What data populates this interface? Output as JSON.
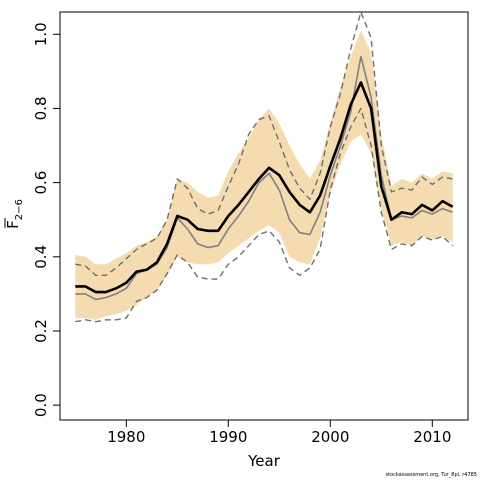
{
  "chart_data": {
    "type": "line",
    "xlabel": "Year",
    "ylabel_main": "F",
    "ylabel_sub": "2−6",
    "xlim": [
      1973.5,
      2013.5
    ],
    "ylim": [
      -0.04,
      1.06
    ],
    "x_ticks": [
      1980,
      1990,
      2000,
      2010
    ],
    "x_tick_labels": [
      "1980",
      "1990",
      "2000",
      "2010"
    ],
    "y_ticks": [
      0.0,
      0.2,
      0.4,
      0.6,
      0.8,
      1.0
    ],
    "y_tick_labels": [
      "0.0",
      "0.2",
      "0.4",
      "0.6",
      "0.8",
      "1.0"
    ],
    "grid": false,
    "colors": {
      "band": "#f5dbb0",
      "main_line": "#000000",
      "secondary_line": "#808080",
      "bounds": "#6e6e6e"
    },
    "x": [
      1975,
      1976,
      1977,
      1978,
      1979,
      1980,
      1981,
      1982,
      1983,
      1984,
      1985,
      1986,
      1987,
      1988,
      1989,
      1990,
      1991,
      1992,
      1993,
      1994,
      1995,
      1996,
      1997,
      1998,
      1999,
      2000,
      2001,
      2002,
      2003,
      2004,
      2005,
      2006,
      2007,
      2008,
      2009,
      2010,
      2011,
      2012
    ],
    "band_upper": [
      0.405,
      0.4,
      0.38,
      0.38,
      0.395,
      0.41,
      0.43,
      0.44,
      0.455,
      0.5,
      0.61,
      0.6,
      0.575,
      0.56,
      0.565,
      0.63,
      0.68,
      0.72,
      0.77,
      0.8,
      0.76,
      0.7,
      0.65,
      0.61,
      0.66,
      0.76,
      0.86,
      0.94,
      1.01,
      0.95,
      0.73,
      0.59,
      0.61,
      0.6,
      0.625,
      0.61,
      0.63,
      0.625
    ],
    "band_lower": [
      0.235,
      0.235,
      0.23,
      0.24,
      0.245,
      0.255,
      0.27,
      0.29,
      0.31,
      0.35,
      0.4,
      0.385,
      0.38,
      0.38,
      0.385,
      0.41,
      0.43,
      0.45,
      0.47,
      0.485,
      0.465,
      0.4,
      0.385,
      0.38,
      0.45,
      0.57,
      0.65,
      0.71,
      0.73,
      0.68,
      0.53,
      0.43,
      0.44,
      0.43,
      0.455,
      0.445,
      0.455,
      0.44
    ],
    "series": [
      {
        "role": "estimate",
        "values": [
          0.32,
          0.32,
          0.305,
          0.305,
          0.315,
          0.33,
          0.36,
          0.365,
          0.385,
          0.435,
          0.51,
          0.5,
          0.475,
          0.47,
          0.47,
          0.51,
          0.54,
          0.575,
          0.61,
          0.64,
          0.62,
          0.575,
          0.54,
          0.52,
          0.565,
          0.645,
          0.72,
          0.81,
          0.87,
          0.8,
          0.59,
          0.5,
          0.52,
          0.515,
          0.54,
          0.525,
          0.55,
          0.535
        ]
      },
      {
        "role": "secondary",
        "values": [
          0.3,
          0.3,
          0.285,
          0.29,
          0.3,
          0.315,
          0.355,
          0.365,
          0.38,
          0.425,
          0.505,
          0.475,
          0.435,
          0.425,
          0.43,
          0.475,
          0.51,
          0.55,
          0.6,
          0.625,
          0.58,
          0.5,
          0.465,
          0.46,
          0.52,
          0.62,
          0.7,
          0.79,
          0.94,
          0.83,
          0.62,
          0.5,
          0.51,
          0.505,
          0.525,
          0.515,
          0.53,
          0.52
        ]
      },
      {
        "role": "upper_bound",
        "values": [
          0.38,
          0.375,
          0.35,
          0.35,
          0.37,
          0.395,
          0.42,
          0.435,
          0.45,
          0.5,
          0.61,
          0.585,
          0.53,
          0.515,
          0.525,
          0.59,
          0.65,
          0.73,
          0.77,
          0.78,
          0.71,
          0.635,
          0.585,
          0.555,
          0.625,
          0.75,
          0.84,
          0.96,
          1.06,
          0.99,
          0.7,
          0.575,
          0.585,
          0.58,
          0.615,
          0.595,
          0.615,
          0.61
        ]
      },
      {
        "role": "lower_bound",
        "values": [
          0.225,
          0.23,
          0.225,
          0.23,
          0.23,
          0.235,
          0.28,
          0.29,
          0.31,
          0.355,
          0.405,
          0.385,
          0.345,
          0.34,
          0.34,
          0.38,
          0.4,
          0.43,
          0.46,
          0.47,
          0.44,
          0.37,
          0.35,
          0.37,
          0.42,
          0.58,
          0.68,
          0.75,
          0.8,
          0.7,
          0.52,
          0.42,
          0.435,
          0.43,
          0.455,
          0.445,
          0.455,
          0.43
        ]
      }
    ]
  },
  "footer": {
    "text": "stockassessment.org, Tur_8pi, r4785"
  }
}
